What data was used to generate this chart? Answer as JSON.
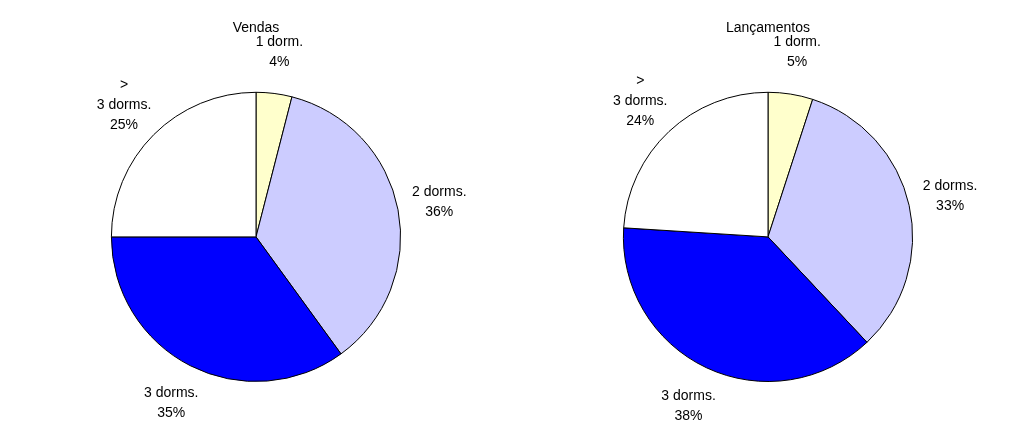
{
  "chart_data": [
    {
      "type": "pie",
      "title": "Vendas",
      "categories": [
        "1 dorm.",
        "2 dorms.",
        "3 dorms.",
        "> 3 dorms."
      ],
      "values": [
        4,
        36,
        35,
        25
      ],
      "value_labels": [
        "4%",
        "36%",
        "35%",
        "25%"
      ],
      "colors": [
        "#ffffcc",
        "#ccccff",
        "#0000ff",
        "#ffffff"
      ],
      "legend": false
    },
    {
      "type": "pie",
      "title": "Lançamentos",
      "categories": [
        "1 dorm.",
        "2 dorms.",
        "3 dorms.",
        "> 3 dorms."
      ],
      "values": [
        5,
        33,
        38,
        24
      ],
      "value_labels": [
        "5%",
        "33%",
        "38%",
        "24%"
      ],
      "colors": [
        "#ffffcc",
        "#ccccff",
        "#0000ff",
        "#ffffff"
      ],
      "legend": false
    }
  ]
}
